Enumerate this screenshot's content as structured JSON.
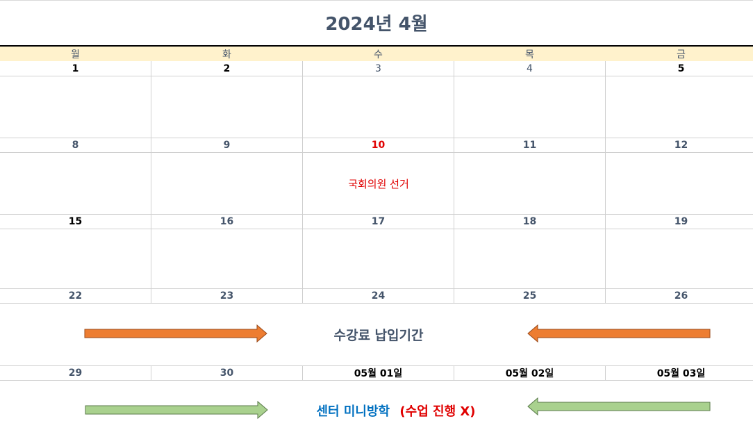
{
  "calendar": {
    "title": "2024년 4월",
    "weekdays": [
      "월",
      "화",
      "수",
      "목",
      "금"
    ],
    "weeks": [
      [
        "1",
        "2",
        "3",
        "4",
        "5"
      ],
      [
        "8",
        "9",
        "10",
        "11",
        "12"
      ],
      [
        "15",
        "16",
        "17",
        "18",
        "19"
      ],
      [
        "22",
        "23",
        "24",
        "25",
        "26"
      ],
      [
        "29",
        "30",
        "05월 01일",
        "05월 02일",
        "05월 03일"
      ]
    ],
    "events": {
      "election": "국회의원 선거",
      "tuition_period": "수강료 납입기간",
      "mini_break": "센터 미니방학",
      "no_class": "(수업 진행 X)"
    },
    "colors": {
      "header_fill": "#fff2cc",
      "holiday_red": "#e00000",
      "orange_arrow": "#ed7d31",
      "green_arrow": "#a9d18e",
      "blue_text": "#0070c0",
      "text_gray": "#44546a"
    }
  }
}
